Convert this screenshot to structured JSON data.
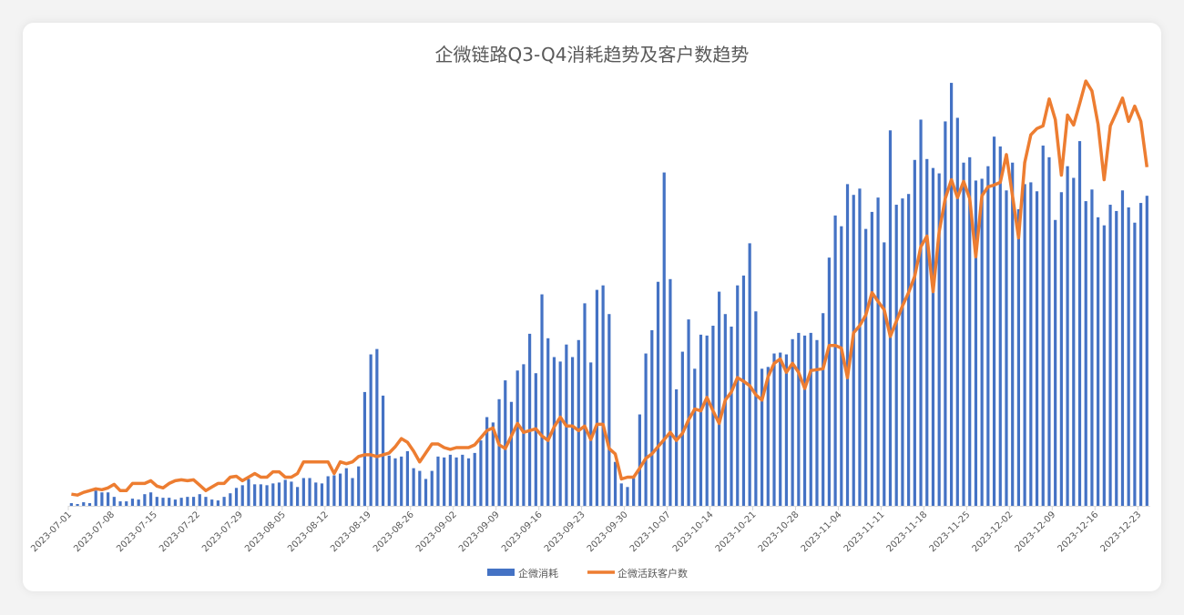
{
  "chart_data": {
    "type": "bar+line",
    "title": "企微链路Q3-Q4消耗趋势及客户数趋势",
    "x_tick_labels": [
      "2023-07-01",
      "2023-07-08",
      "2023-07-15",
      "2023-07-22",
      "2023-07-29",
      "2023-08-05",
      "2023-08-12",
      "2023-08-19",
      "2023-08-26",
      "2023-09-02",
      "2023-09-09",
      "2023-09-16",
      "2023-09-23",
      "2023-09-30",
      "2023-10-07",
      "2023-10-14",
      "2023-10-21",
      "2023-10-28",
      "2023-11-04",
      "2023-11-11",
      "2023-11-18",
      "2023-11-25",
      "2023-12-02",
      "2023-12-09",
      "2023-12-16",
      "2023-12-23"
    ],
    "x_start": "2023-07-01",
    "x_interval_days": 1,
    "ylim": [
      0,
      480
    ],
    "y_axis_shown": false,
    "grid": false,
    "legend_position": "bottom",
    "series": [
      {
        "name": "企微消耗",
        "kind": "bar",
        "color": "#4472C4",
        "values": [
          3,
          2,
          4,
          3,
          17,
          15,
          15,
          10,
          5,
          5,
          8,
          7,
          13,
          15,
          10,
          9,
          9,
          7,
          9,
          10,
          10,
          13,
          10,
          7,
          6,
          10,
          14,
          20,
          23,
          30,
          24,
          24,
          23,
          25,
          26,
          29,
          27,
          21,
          31,
          31,
          26,
          25,
          33,
          34,
          36,
          42,
          31,
          44,
          127,
          169,
          175,
          123,
          56,
          53,
          55,
          61,
          42,
          39,
          30,
          39,
          55,
          54,
          57,
          54,
          57,
          53,
          59,
          73,
          99,
          93,
          119,
          140,
          116,
          151,
          158,
          192,
          148,
          236,
          187,
          166,
          161,
          180,
          166,
          185,
          226,
          160,
          241,
          246,
          214,
          49,
          25,
          21,
          31,
          102,
          170,
          196,
          250,
          372,
          253,
          130,
          172,
          208,
          153,
          191,
          190,
          201,
          239,
          214,
          200,
          246,
          257,
          293,
          217,
          153,
          155,
          170,
          171,
          169,
          186,
          193,
          190,
          193,
          185,
          215,
          277,
          324,
          312,
          359,
          347,
          354,
          309,
          328,
          344,
          294,
          419,
          336,
          343,
          348,
          386,
          431,
          387,
          377,
          371,
          429,
          472,
          433,
          383,
          389,
          363,
          365,
          379,
          412,
          401,
          352,
          383,
          331,
          359,
          361,
          351,
          402,
          389,
          319,
          350,
          379,
          366,
          407,
          340,
          353,
          322,
          313,
          336,
          329,
          352,
          333,
          316,
          338,
          346
        ]
      },
      {
        "name": "企微活跃客户数",
        "kind": "line",
        "color": "#ED7D31",
        "values": [
          13,
          12,
          15,
          17,
          19,
          18,
          20,
          24,
          17,
          17,
          25,
          25,
          25,
          28,
          22,
          20,
          25,
          28,
          29,
          28,
          29,
          23,
          17,
          21,
          25,
          25,
          32,
          33,
          28,
          32,
          36,
          32,
          32,
          38,
          38,
          32,
          32,
          36,
          49,
          49,
          49,
          49,
          49,
          36,
          49,
          47,
          49,
          55,
          57,
          57,
          55,
          57,
          59,
          66,
          75,
          71,
          61,
          49,
          59,
          69,
          69,
          65,
          63,
          65,
          65,
          65,
          68,
          76,
          84,
          87,
          68,
          64,
          78,
          92,
          82,
          84,
          86,
          78,
          73,
          88,
          99,
          89,
          89,
          84,
          89,
          74,
          91,
          91,
          64,
          58,
          30,
          32,
          32,
          42,
          53,
          58,
          66,
          74,
          82,
          73,
          81,
          96,
          108,
          106,
          121,
          106,
          92,
          118,
          127,
          143,
          139,
          134,
          124,
          118,
          144,
          159,
          164,
          149,
          159,
          149,
          131,
          151,
          152,
          153,
          179,
          179,
          176,
          143,
          193,
          201,
          213,
          238,
          228,
          219,
          189,
          206,
          223,
          238,
          256,
          289,
          301,
          239,
          306,
          343,
          364,
          344,
          362,
          343,
          278,
          346,
          356,
          358,
          361,
          392,
          346,
          299,
          383,
          414,
          421,
          424,
          454,
          431,
          369,
          436,
          425,
          449,
          474,
          463,
          426,
          364,
          424,
          439,
          455,
          429,
          446,
          429,
          378
        ]
      }
    ]
  }
}
